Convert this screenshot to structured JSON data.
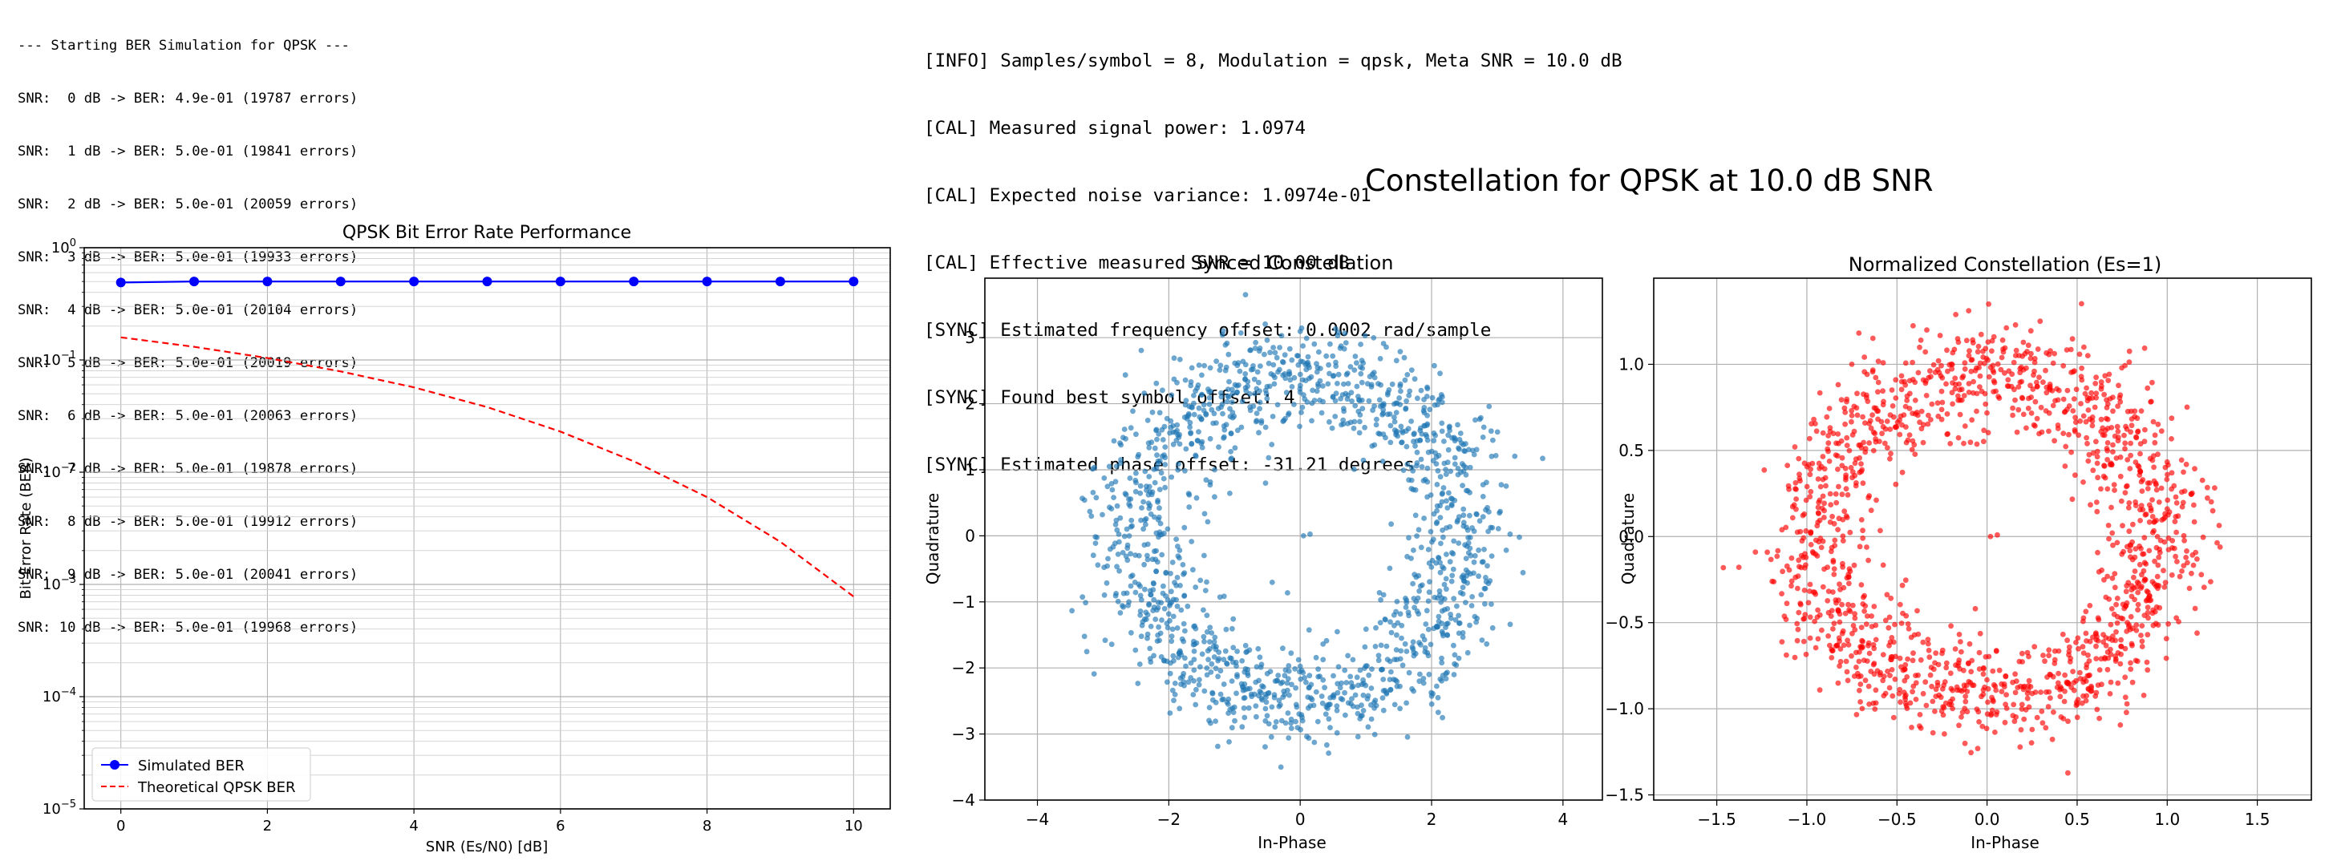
{
  "console_left": {
    "header": "--- Starting BER Simulation for QPSK ---",
    "lines": [
      "SNR:  0 dB -> BER: 4.9e-01 (19787 errors)",
      "SNR:  1 dB -> BER: 5.0e-01 (19841 errors)",
      "SNR:  2 dB -> BER: 5.0e-01 (20059 errors)",
      "SNR:  3 dB -> BER: 5.0e-01 (19933 errors)",
      "SNR:  4 dB -> BER: 5.0e-01 (20104 errors)",
      "SNR:  5 dB -> BER: 5.0e-01 (20019 errors)",
      "SNR:  6 dB -> BER: 5.0e-01 (20063 errors)",
      "SNR:  7 dB -> BER: 5.0e-01 (19878 errors)",
      "SNR:  8 dB -> BER: 5.0e-01 (19912 errors)",
      "SNR:  9 dB -> BER: 5.0e-01 (20041 errors)",
      "SNR: 10 dB -> BER: 5.0e-01 (19968 errors)"
    ]
  },
  "console_right": {
    "lines": [
      "[INFO] Samples/symbol = 8, Modulation = qpsk, Meta SNR = 10.0 dB",
      "[CAL] Measured signal power: 1.0974",
      "[CAL] Expected noise variance: 1.0974e-01",
      "[CAL] Effective measured SNR = 10.00 dB",
      "[SYNC] Estimated frequency offset: 0.0002 rad/sample",
      "[SYNC] Found best symbol offset: 4",
      "[SYNC] Estimated phase offset: -31.21 degrees"
    ]
  },
  "figure_title": "Constellation for QPSK at 10.0 dB SNR",
  "chart_data": [
    {
      "type": "line",
      "title": "QPSK Bit Error Rate Performance",
      "xlabel": "SNR (Es/N0) [dB]",
      "ylabel": "Bit Error Rate (BER)",
      "yscale": "log",
      "ylim": [
        1e-05,
        1
      ],
      "xlim": [
        -0.5,
        10.5
      ],
      "x": [
        0,
        1,
        2,
        3,
        4,
        5,
        6,
        7,
        8,
        9,
        10
      ],
      "xticks": [
        "0",
        "2",
        "4",
        "6",
        "8",
        "10"
      ],
      "yticks": [
        "10^0",
        "10^-1",
        "10^-2",
        "10^-3",
        "10^-4",
        "10^-5"
      ],
      "grid": true,
      "legend_position": "lower-left",
      "series": [
        {
          "name": "Simulated BER",
          "color": "#0000ff",
          "style": "solid-dot",
          "values": [
            0.49,
            0.5,
            0.5,
            0.5,
            0.5,
            0.5,
            0.5,
            0.5,
            0.5,
            0.5,
            0.5
          ]
        },
        {
          "name": "Theoretical QPSK BER",
          "color": "#ff0000",
          "style": "dashed",
          "values": [
            0.159,
            0.131,
            0.104,
            0.079,
            0.057,
            0.038,
            0.023,
            0.0125,
            0.006,
            0.0024,
            0.00078
          ]
        }
      ]
    },
    {
      "type": "scatter",
      "title": "Synced Constellation",
      "xlabel": "In-Phase",
      "ylabel": "Quadrature",
      "xlim": [
        -4.8,
        4.6
      ],
      "ylim": [
        -4.0,
        3.9
      ],
      "xticks": [
        "-4",
        "-2",
        "0",
        "2",
        "4"
      ],
      "yticks": [
        "3",
        "2",
        "1",
        "0",
        "-1",
        "-2",
        "-3",
        "-4"
      ],
      "grid": true,
      "color": "#1f77b4",
      "ring_radius_approx": 2.5,
      "point_count_approx": 1500
    },
    {
      "type": "scatter",
      "title": "Normalized Constellation (Es=1)",
      "xlabel": "In-Phase",
      "ylabel": "Quadrature",
      "xlim": [
        -1.85,
        1.8
      ],
      "ylim": [
        -1.53,
        1.5
      ],
      "xticks": [
        "-1.5",
        "-1.0",
        "-0.5",
        "0.0",
        "0.5",
        "1.0",
        "1.5"
      ],
      "yticks": [
        "1.0",
        "0.5",
        "0.0",
        "-0.5",
        "-1.0",
        "-1.5"
      ],
      "grid": true,
      "color": "#ff0000",
      "ring_radius_approx": 0.95,
      "point_count_approx": 1500
    }
  ]
}
